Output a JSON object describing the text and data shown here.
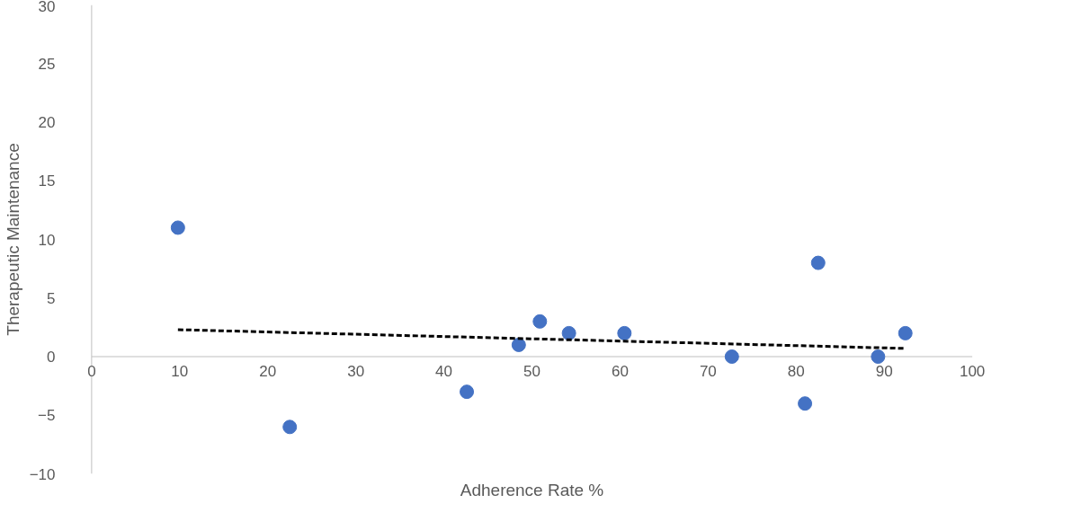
{
  "chart_data": {
    "type": "scatter",
    "xlabel": "Adherence Rate %",
    "ylabel": "Therapeutic Maintenance",
    "xlim": [
      0,
      100
    ],
    "xticks": [
      0,
      10,
      20,
      30,
      40,
      50,
      60,
      70,
      80,
      90,
      100
    ],
    "ylim": [
      -10,
      30
    ],
    "yticks": [
      -10,
      -5,
      0,
      5,
      10,
      15,
      20,
      25,
      30
    ],
    "grid": false,
    "series": [
      {
        "color": "#4472c4",
        "marker": "circle",
        "x": [
          9.8,
          22.5,
          42.6,
          48.5,
          50.9,
          54.2,
          60.5,
          72.7,
          81.0,
          82.5,
          89.3,
          92.4
        ],
        "values": [
          11,
          -6,
          -3,
          1,
          3,
          2,
          2,
          0,
          -4,
          8,
          0,
          2
        ]
      },
      {
        "type": "line",
        "color": "#000000",
        "line_style": "dashed",
        "x": [
          9.8,
          92.4
        ],
        "values": [
          2.3,
          0.7
        ]
      }
    ]
  }
}
